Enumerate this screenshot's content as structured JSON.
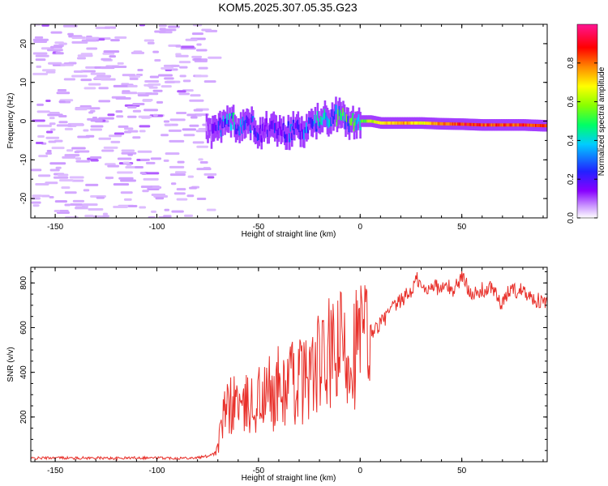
{
  "title": "KOM5.2025.307.05.35.G23",
  "chart_data": [
    {
      "type": "heatmap",
      "name": "spectrogram",
      "xlabel": "Height of straight line (km)",
      "ylabel": "Frequency (Hz)",
      "xlim": [
        -162,
        92
      ],
      "ylim": [
        -25,
        25
      ],
      "xticks": [
        -150,
        -100,
        -50,
        0,
        50
      ],
      "yticks": [
        -20,
        -10,
        0,
        10,
        20
      ],
      "xtick_labels": [
        "-150",
        "-100",
        "-50",
        "0",
        "50"
      ],
      "ytick_labels": [
        "-20",
        "-10",
        "0",
        "10",
        "20"
      ],
      "colorbar": {
        "label": "Normalized spectral amplitude",
        "range": [
          0,
          1
        ],
        "ticks": [
          0.0,
          0.2,
          0.4,
          0.6,
          0.8
        ],
        "tick_labels": [
          "0.0",
          "0.2",
          "0.4",
          "0.6",
          "0.8"
        ],
        "colors": [
          "#ffffff",
          "#cc99ff",
          "#8800ff",
          "#2222ff",
          "#00ccff",
          "#00ff66",
          "#88ff00",
          "#ffff00",
          "#ff8800",
          "#ff0000",
          "#ff1493"
        ]
      },
      "signal_trace": {
        "description_points_km_hz": [
          [
            -75,
            -3
          ],
          [
            -70,
            -2
          ],
          [
            -65,
            0
          ],
          [
            -60,
            -1
          ],
          [
            -55,
            0
          ],
          [
            -50,
            -3
          ],
          [
            -45,
            -2
          ],
          [
            -40,
            -2
          ],
          [
            -35,
            -3
          ],
          [
            -30,
            -2
          ],
          [
            -25,
            -1
          ],
          [
            -20,
            0
          ],
          [
            -15,
            1
          ],
          [
            -10,
            1
          ],
          [
            -5,
            0
          ],
          [
            0,
            0
          ],
          [
            5,
            0
          ],
          [
            10,
            -0.5
          ],
          [
            20,
            -0.5
          ],
          [
            30,
            -0.5
          ],
          [
            40,
            -0.7
          ],
          [
            50,
            -0.8
          ],
          [
            60,
            -1
          ],
          [
            70,
            -1
          ],
          [
            80,
            -1
          ],
          [
            90,
            -1.2
          ]
        ],
        "amplitude": [
          [
            -75,
            0.15
          ],
          [
            -65,
            0.45
          ],
          [
            -55,
            0.3
          ],
          [
            -45,
            0.25
          ],
          [
            -35,
            0.3
          ],
          [
            -25,
            0.35
          ],
          [
            -15,
            0.45
          ],
          [
            -5,
            0.5
          ],
          [
            0,
            0.55
          ],
          [
            10,
            0.75
          ],
          [
            20,
            0.8
          ],
          [
            30,
            0.7
          ],
          [
            40,
            0.85
          ],
          [
            50,
            0.9
          ],
          [
            60,
            0.88
          ],
          [
            70,
            0.85
          ],
          [
            80,
            0.9
          ],
          [
            90,
            0.88
          ]
        ]
      }
    },
    {
      "type": "line",
      "name": "snr",
      "xlabel": "Height of straight line (km)",
      "ylabel": "SNR (v/v)",
      "xlim": [
        -162,
        92
      ],
      "ylim": [
        0,
        870
      ],
      "xticks": [
        -150,
        -100,
        -50,
        0,
        50
      ],
      "yticks": [
        200,
        400,
        600,
        800
      ],
      "xtick_labels": [
        "-150",
        "-100",
        "-50",
        "0",
        "50"
      ],
      "ytick_labels": [
        "200",
        "400",
        "600",
        "800"
      ],
      "series": [
        {
          "name": "SNR",
          "color": "#e8302a",
          "x": [
            -162,
            -150,
            -140,
            -130,
            -120,
            -110,
            -100,
            -90,
            -80,
            -75,
            -72,
            -70,
            -68,
            -65,
            -62,
            -60,
            -58,
            -55,
            -52,
            -50,
            -48,
            -45,
            -42,
            -40,
            -38,
            -35,
            -32,
            -30,
            -28,
            -25,
            -22,
            -20,
            -18,
            -15,
            -12,
            -10,
            -8,
            -5,
            -2,
            0,
            3,
            5,
            8,
            10,
            13,
            15,
            18,
            20,
            22,
            25,
            28,
            30,
            33,
            35,
            38,
            40,
            43,
            45,
            48,
            50,
            53,
            55,
            58,
            60,
            63,
            65,
            68,
            70,
            73,
            75,
            78,
            80,
            83,
            85,
            88,
            92
          ],
          "values": [
            15,
            18,
            16,
            17,
            15,
            18,
            17,
            16,
            18,
            25,
            40,
            60,
            180,
            240,
            260,
            300,
            200,
            280,
            230,
            300,
            260,
            320,
            280,
            350,
            300,
            380,
            330,
            400,
            350,
            420,
            380,
            460,
            420,
            480,
            440,
            520,
            480,
            500,
            520,
            540,
            560,
            580,
            600,
            620,
            650,
            680,
            700,
            720,
            740,
            760,
            820,
            780,
            760,
            800,
            780,
            770,
            790,
            760,
            800,
            830,
            780,
            760,
            740,
            770,
            760,
            790,
            720,
            700,
            760,
            780,
            750,
            790,
            740,
            730,
            720,
            710
          ]
        }
      ]
    }
  ]
}
